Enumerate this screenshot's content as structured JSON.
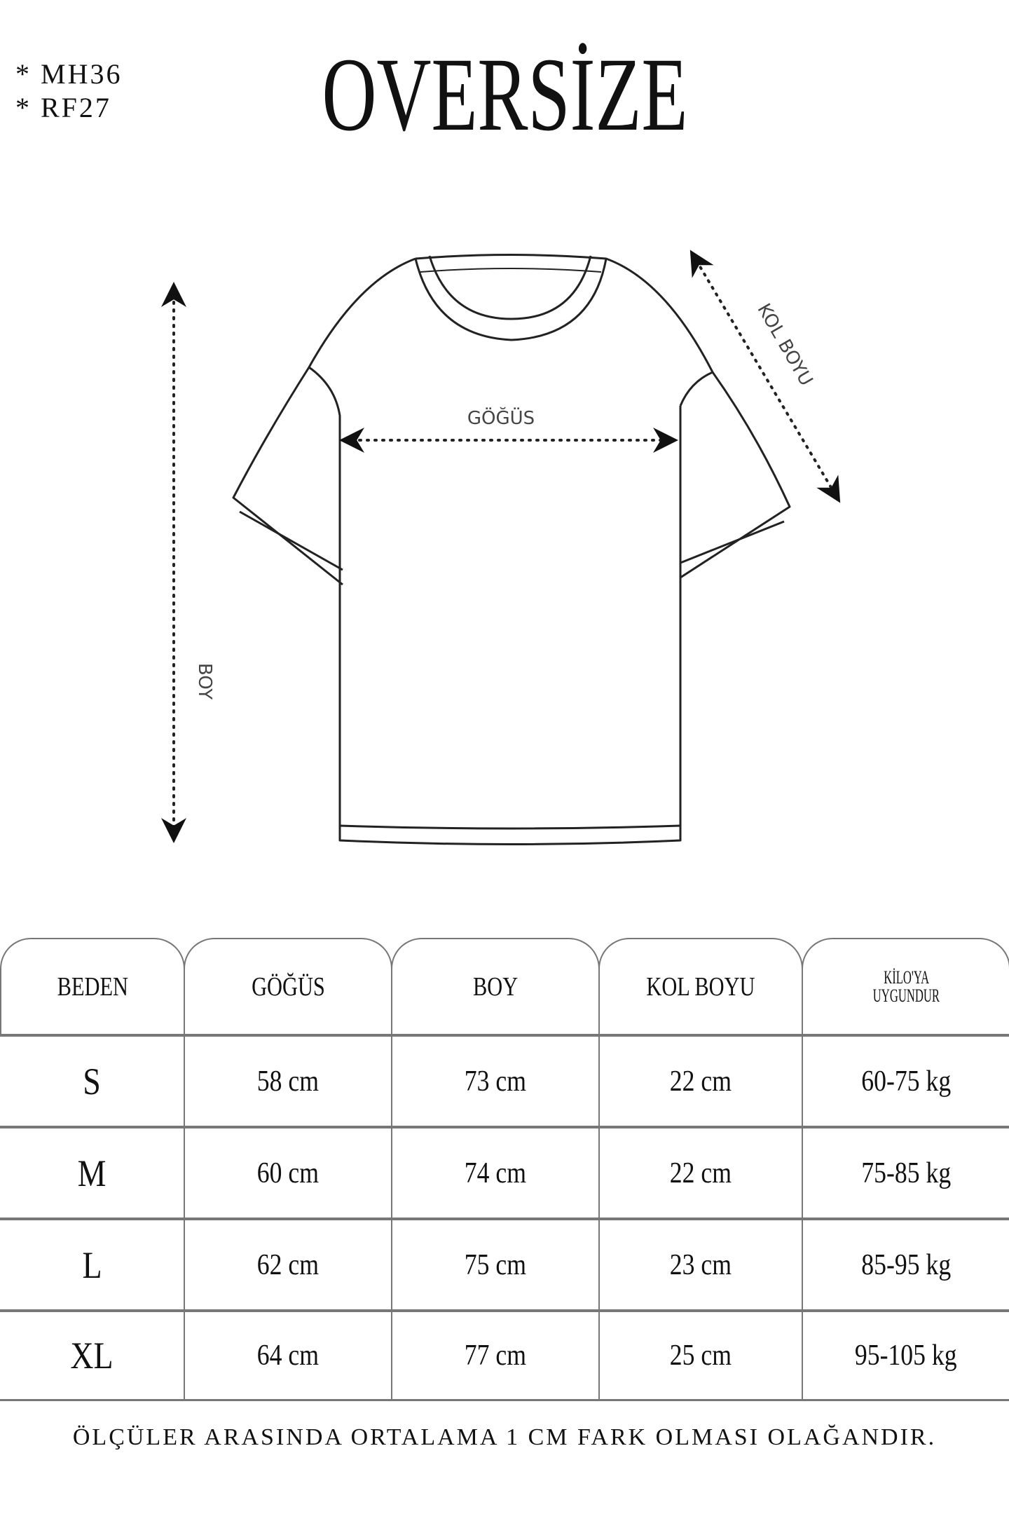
{
  "codes": [
    "* MH36",
    "* RF27"
  ],
  "title": "OVERSİZE",
  "diagram": {
    "chest_label": "GÖĞÜS",
    "length_label": "BOY",
    "sleeve_label": "KOL BOYU"
  },
  "table": {
    "headers": [
      "BEDEN",
      "GÖĞÜS",
      "BOY",
      "KOL BOYU",
      "KİLO'YA UYGUNDUR"
    ],
    "header_kilo_lines": [
      "KİLO'YA",
      "UYGUNDUR"
    ],
    "rows": [
      [
        "S",
        "58 cm",
        "73 cm",
        "22  cm",
        "60-75 kg"
      ],
      [
        "M",
        "60 cm",
        "74 cm",
        "22 cm",
        "75-85 kg"
      ],
      [
        "L",
        "62 cm",
        "75 cm",
        "23 cm",
        "85-95 kg"
      ],
      [
        "XL",
        "64 cm",
        "77 cm",
        "25 cm",
        "95-105 kg"
      ]
    ]
  },
  "footer": "ÖLÇÜLER ARASINDA ORTALAMA 1 CM FARK OLMASI OLAĞANDIR."
}
